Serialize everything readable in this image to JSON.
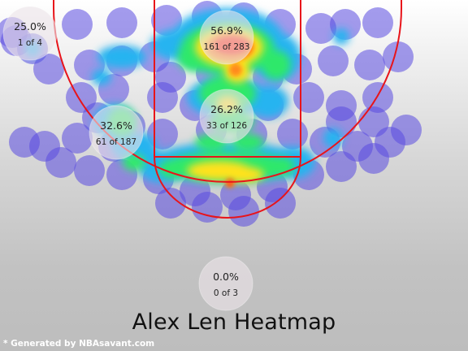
{
  "title": "Alex Len Heatmap",
  "credit": "* Generated by NBAsavant.com",
  "chart_data": {
    "type": "heatmap",
    "title": "Alex Len Heatmap",
    "court": {
      "lines_color": "#e8141a"
    },
    "zones": [
      {
        "id": "left-corner-3",
        "pct": "25.0%",
        "made": 1,
        "attempts": 4,
        "label": "1 of 4"
      },
      {
        "id": "restricted-area",
        "pct": "56.9%",
        "made": 161,
        "attempts": 283,
        "label": "161 of 283"
      },
      {
        "id": "paint",
        "pct": "26.2%",
        "made": 33,
        "attempts": 126,
        "label": "33 of 126"
      },
      {
        "id": "left-midrange",
        "pct": "32.6%",
        "made": 61,
        "attempts": 187,
        "label": "61 of 187"
      },
      {
        "id": "above-break-3",
        "pct": "0.0%",
        "made": 0,
        "attempts": 3,
        "label": "0 of 3"
      }
    ],
    "colorscale": [
      "#3a3ae0",
      "#28b4f0",
      "#2ee86a",
      "#c8f02a",
      "#ffe21c",
      "#ff8a1a",
      "#ff2a10"
    ]
  }
}
